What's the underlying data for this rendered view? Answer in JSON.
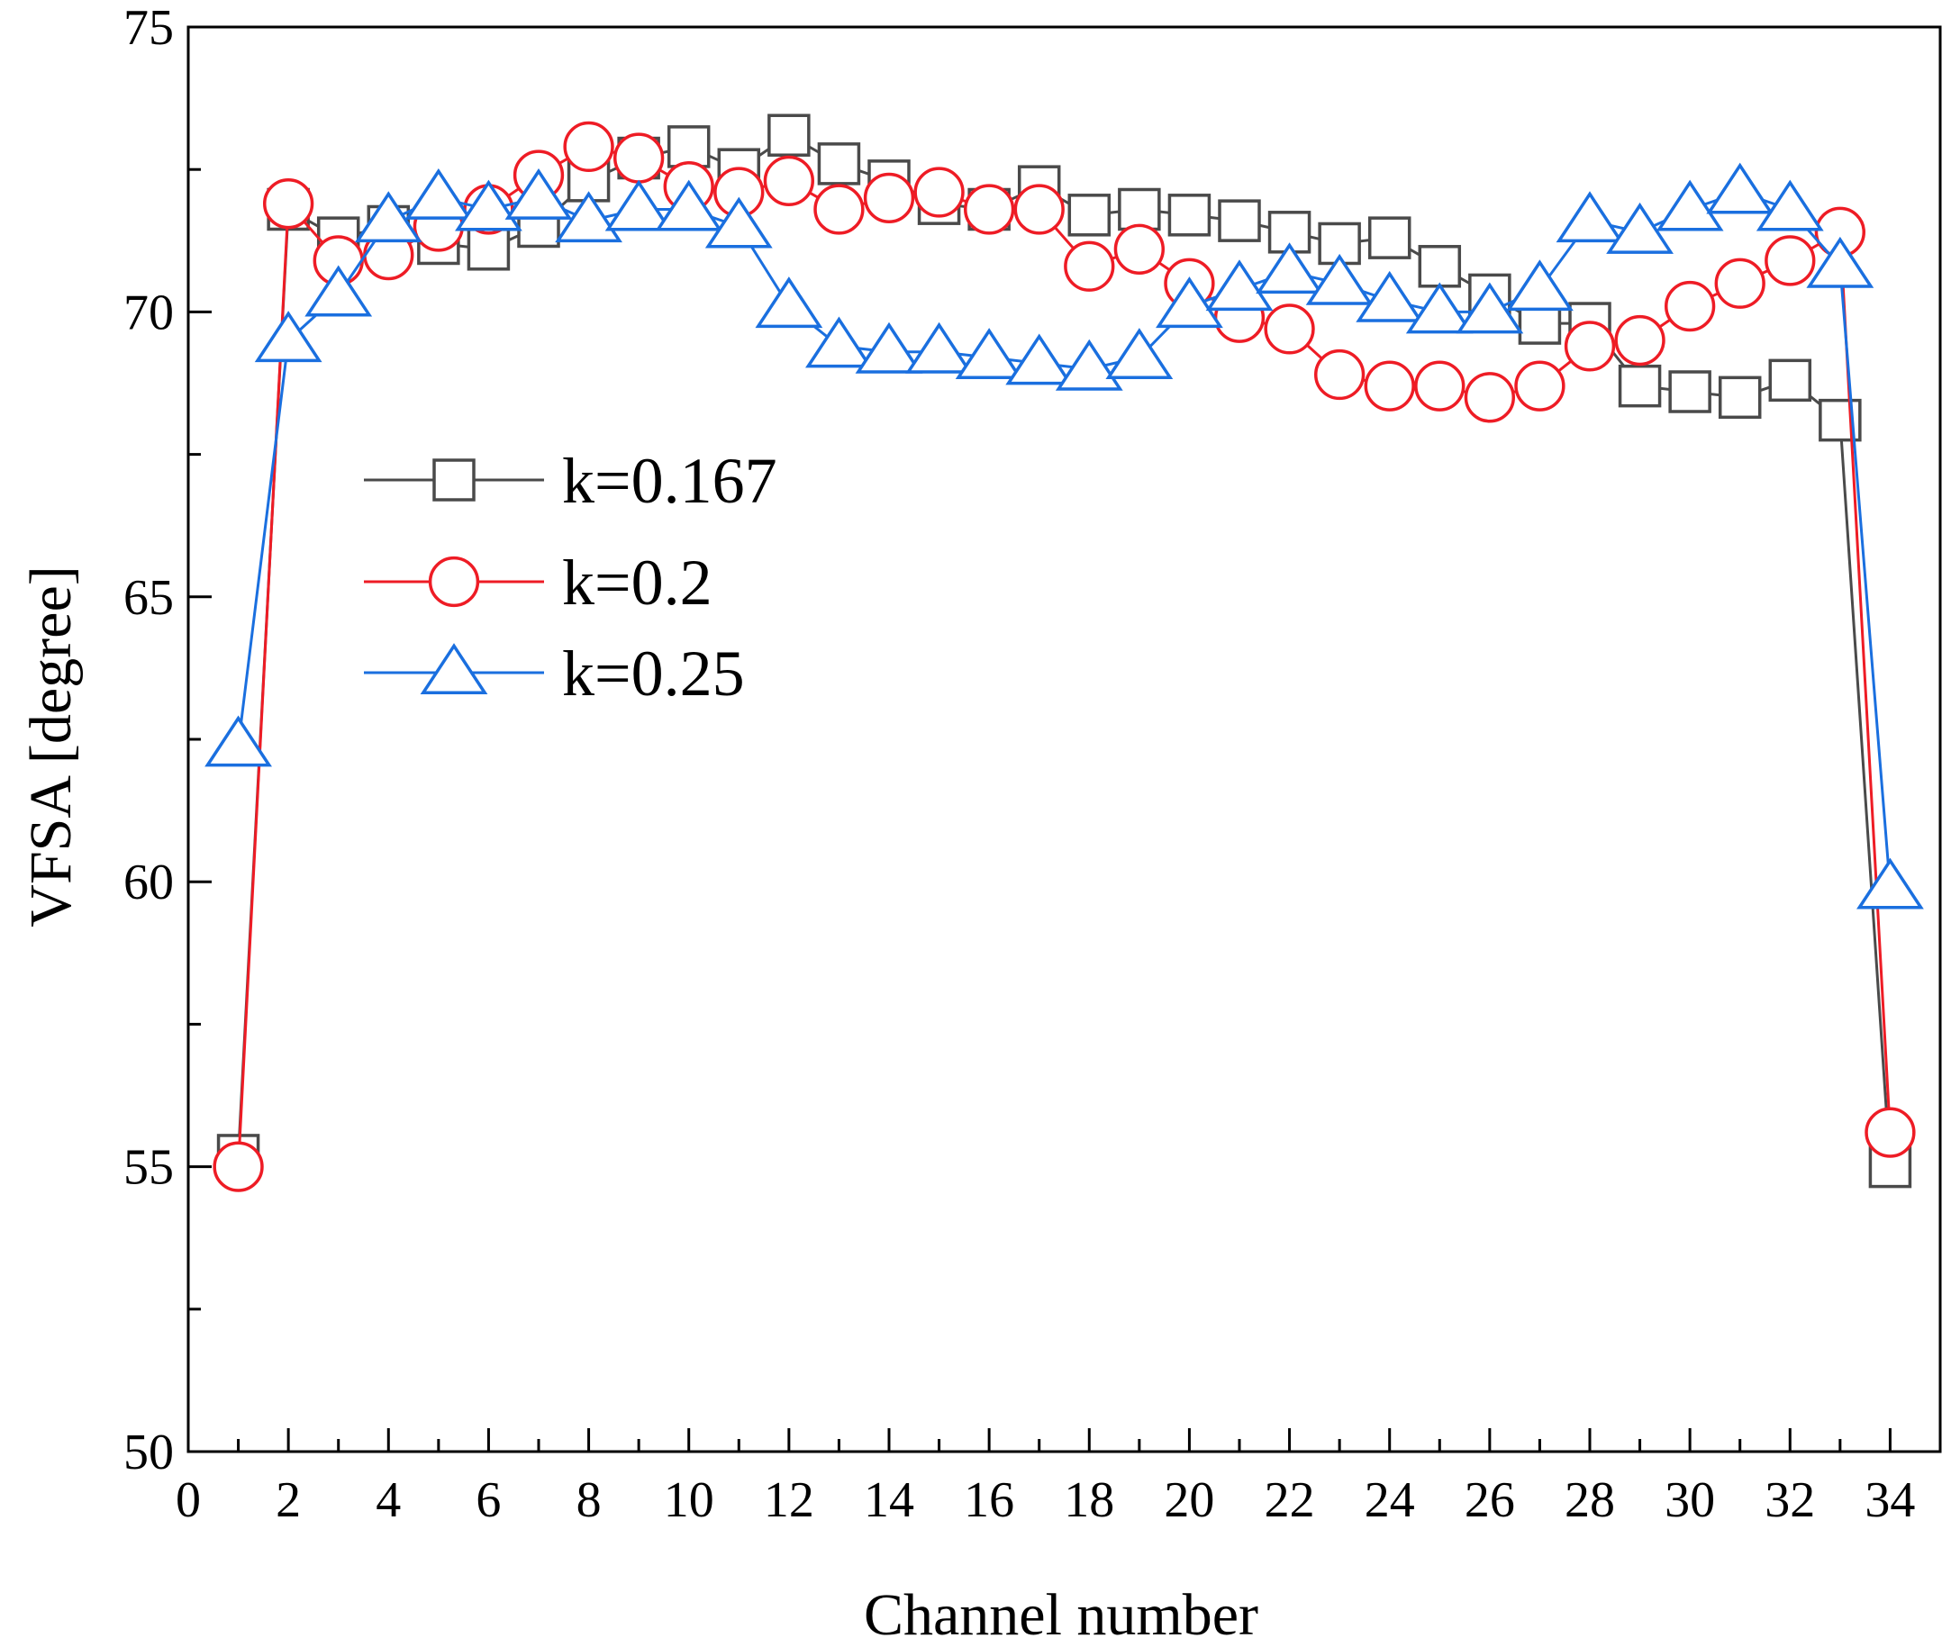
{
  "chart_data": {
    "type": "line",
    "title": "",
    "xlabel": "Channel number",
    "ylabel": "VFSA [degree]",
    "xlim": [
      0,
      35
    ],
    "ylim": [
      50,
      75
    ],
    "x_ticks": [
      0,
      2,
      4,
      6,
      8,
      10,
      12,
      14,
      16,
      18,
      20,
      22,
      24,
      26,
      28,
      30,
      32,
      34
    ],
    "y_ticks": [
      50,
      55,
      60,
      65,
      70,
      75
    ],
    "grid": false,
    "legend_position": "center-left",
    "x": [
      1,
      2,
      3,
      4,
      5,
      6,
      7,
      8,
      9,
      10,
      11,
      12,
      13,
      14,
      15,
      16,
      17,
      18,
      19,
      20,
      21,
      22,
      23,
      24,
      25,
      26,
      27,
      28,
      29,
      30,
      31,
      32,
      33,
      34
    ],
    "series": [
      {
        "name": "k=0.167",
        "color": "#4a4a4a",
        "marker": "square",
        "values": [
          55.2,
          71.8,
          71.3,
          71.5,
          71.2,
          71.1,
          71.5,
          72.3,
          72.7,
          72.9,
          72.5,
          73.1,
          72.6,
          72.3,
          71.9,
          71.8,
          72.2,
          71.7,
          71.8,
          71.7,
          71.6,
          71.4,
          71.2,
          71.3,
          70.8,
          70.3,
          69.8,
          69.8,
          68.7,
          68.6,
          68.5,
          68.8,
          68.1,
          55.0
        ]
      },
      {
        "name": "k=0.2",
        "color": "#ee1c25",
        "marker": "circle",
        "values": [
          55.0,
          71.9,
          70.9,
          71.0,
          71.5,
          71.8,
          72.4,
          72.9,
          72.7,
          72.2,
          72.1,
          72.3,
          71.8,
          72.0,
          72.1,
          71.8,
          71.8,
          70.8,
          71.1,
          70.5,
          69.9,
          69.7,
          68.9,
          68.7,
          68.7,
          68.5,
          68.7,
          69.4,
          69.5,
          70.1,
          70.5,
          70.9,
          71.4,
          55.6
        ]
      },
      {
        "name": "k=0.25",
        "color": "#1a6fdf",
        "marker": "triangle",
        "values": [
          62.4,
          69.5,
          70.3,
          71.6,
          72.0,
          71.8,
          72.0,
          71.6,
          71.8,
          71.8,
          71.5,
          70.1,
          69.4,
          69.3,
          69.3,
          69.2,
          69.1,
          69.0,
          69.2,
          70.1,
          70.4,
          70.7,
          70.5,
          70.2,
          70.0,
          70.0,
          70.4,
          71.6,
          71.4,
          71.8,
          72.1,
          71.8,
          70.8,
          59.9
        ]
      }
    ]
  }
}
